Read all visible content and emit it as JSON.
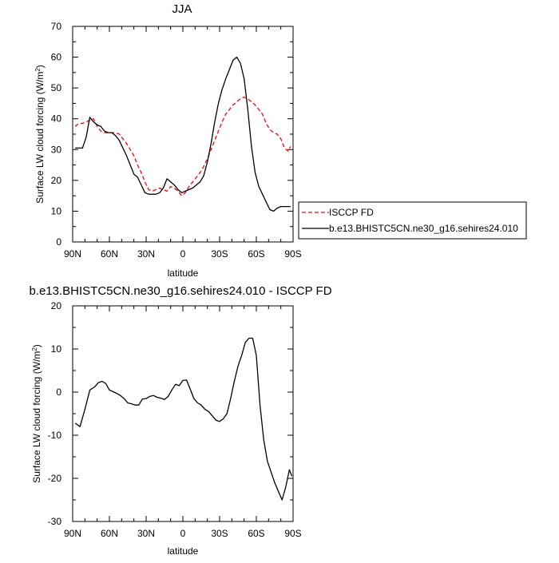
{
  "chart_data": [
    {
      "type": "line",
      "title": "JJA",
      "xlabel": "latitude",
      "ylabel": "Surface LW cloud forcing (W/m",
      "ylabel_sup": "2",
      "ylabel_end": ")",
      "xlim": [
        -90,
        90
      ],
      "ylim": [
        0,
        70
      ],
      "xticks": [
        -90,
        -60,
        -30,
        0,
        30,
        60,
        90
      ],
      "xtick_labels": [
        "90N",
        "60N",
        "30N",
        "0",
        "30S",
        "60S",
        "90S"
      ],
      "yticks": [
        0,
        10,
        20,
        30,
        40,
        50,
        60,
        70
      ],
      "ytick_labels": [
        "0",
        "10",
        "20",
        "30",
        "40",
        "50",
        "60",
        "70"
      ],
      "legend_position": "right-bottom, outside",
      "series": [
        {
          "name": "ISCCP FD",
          "style": "dashed",
          "color": "#ff0000",
          "x": [
            -88,
            -85,
            -82,
            -79,
            -76,
            -73,
            -70,
            -67,
            -64,
            -61,
            -58,
            -55,
            -52,
            -49,
            -46,
            -43,
            -40,
            -37,
            -34,
            -31,
            -28,
            -25,
            -22,
            -19,
            -16,
            -13,
            -10,
            -7,
            -4,
            -1,
            2,
            5,
            8,
            11,
            14,
            17,
            20,
            23,
            26,
            29,
            32,
            35,
            38,
            41,
            44,
            47,
            50,
            53,
            56,
            59,
            62,
            65,
            68,
            71,
            74,
            77,
            80,
            83,
            86,
            88
          ],
          "y": [
            37.5,
            38.5,
            38.5,
            39,
            39.5,
            40,
            37.5,
            36,
            35.5,
            35.5,
            35.5,
            35.5,
            35,
            33.5,
            32,
            30,
            28,
            25,
            22.5,
            19.5,
            17,
            16.5,
            17,
            17.5,
            17,
            16.5,
            18,
            17.5,
            16.5,
            15,
            16,
            18,
            19.5,
            21,
            22.5,
            24.5,
            27,
            30,
            33,
            36,
            39,
            41.5,
            43,
            44.5,
            45.5,
            46.5,
            47,
            46.5,
            45.5,
            44.5,
            43,
            41.5,
            38.5,
            36.5,
            35.5,
            35,
            33.5,
            30.5,
            29.5,
            31
          ]
        },
        {
          "name": "b.e13.BHISTC5CN.ne30_g16.sehires24.010",
          "style": "solid",
          "color": "#000000",
          "x": [
            -88,
            -85,
            -82,
            -79,
            -76,
            -73,
            -70,
            -67,
            -64,
            -61,
            -58,
            -55,
            -52,
            -49,
            -46,
            -43,
            -40,
            -37,
            -34,
            -31,
            -28,
            -25,
            -22,
            -19,
            -16,
            -13,
            -10,
            -7,
            -4,
            -1,
            2,
            5,
            8,
            11,
            14,
            17,
            20,
            23,
            26,
            29,
            32,
            35,
            38,
            41,
            44,
            47,
            50,
            53,
            56,
            59,
            62,
            65,
            68,
            71,
            74,
            77,
            80,
            83,
            86,
            88
          ],
          "y": [
            30.5,
            30.5,
            30.5,
            34,
            40.5,
            39,
            38,
            37.5,
            36,
            35.5,
            35.5,
            34.5,
            33,
            30.5,
            28,
            25,
            22,
            21,
            18.5,
            16,
            15.5,
            15.5,
            15.5,
            16,
            17.5,
            20.5,
            19.5,
            18.5,
            17,
            16,
            16.5,
            17,
            17.5,
            18.5,
            19.5,
            21.5,
            26,
            32,
            39,
            45,
            49.5,
            53,
            56,
            59,
            60,
            58,
            53,
            43,
            31,
            22.5,
            18,
            15.5,
            13,
            10.5,
            10,
            11,
            11.5,
            11.5,
            11.5,
            11.5
          ]
        }
      ]
    },
    {
      "type": "line",
      "title": "b.e13.BHISTC5CN.ne30_g16.sehires24.010 - ISCCP FD",
      "xlabel": "latitude",
      "ylabel": "Surface LW cloud forcing (W/m",
      "ylabel_sup": "2",
      "ylabel_end": ")",
      "xlim": [
        -90,
        90
      ],
      "ylim": [
        -30,
        20
      ],
      "xticks": [
        -90,
        -60,
        -30,
        0,
        30,
        60,
        90
      ],
      "xtick_labels": [
        "90N",
        "60N",
        "30N",
        "0",
        "30S",
        "60S",
        "90S"
      ],
      "yticks": [
        -30,
        -20,
        -10,
        0,
        10,
        20
      ],
      "ytick_labels": [
        "-30",
        "-20",
        "-10",
        "0",
        "10",
        "20"
      ],
      "series": [
        {
          "style": "solid",
          "color": "#000000",
          "x": [
            -88,
            -84,
            -80,
            -76,
            -72,
            -69,
            -66,
            -63,
            -60,
            -57,
            -54,
            -51,
            -48,
            -45,
            -42,
            -39,
            -36,
            -33,
            -30,
            -27,
            -24,
            -21,
            -18,
            -15,
            -12,
            -9,
            -6,
            -3,
            0,
            3,
            6,
            9,
            12,
            15,
            18,
            21,
            24,
            27,
            30,
            33,
            36,
            39,
            42,
            45,
            48,
            51,
            54,
            57,
            60,
            63,
            66,
            69,
            72,
            75,
            78,
            81,
            84,
            87,
            89
          ],
          "y": [
            -7.2,
            -8,
            -4,
            0.5,
            1.2,
            2.2,
            2.5,
            2,
            0.5,
            0.1,
            -0.3,
            -0.8,
            -1.5,
            -2.5,
            -2.7,
            -3,
            -3,
            -1.6,
            -1.5,
            -1,
            -0.8,
            -1.2,
            -1.4,
            -1.7,
            -1,
            0.5,
            1.8,
            1.5,
            2.7,
            2.8,
            0.7,
            -1.5,
            -2.5,
            -3,
            -4,
            -4.5,
            -5.5,
            -6.5,
            -6.8,
            -6.2,
            -5,
            -1.5,
            2.5,
            6,
            8.5,
            11.5,
            12.5,
            12.5,
            8.5,
            -3,
            -11,
            -16,
            -18.5,
            -21,
            -23,
            -25,
            -22,
            -18,
            -19.5
          ]
        }
      ]
    }
  ],
  "legend": {
    "entries": [
      "ISCCP FD",
      "b.e13.BHISTC5CN.ne30_g16.sehires24.010"
    ]
  }
}
